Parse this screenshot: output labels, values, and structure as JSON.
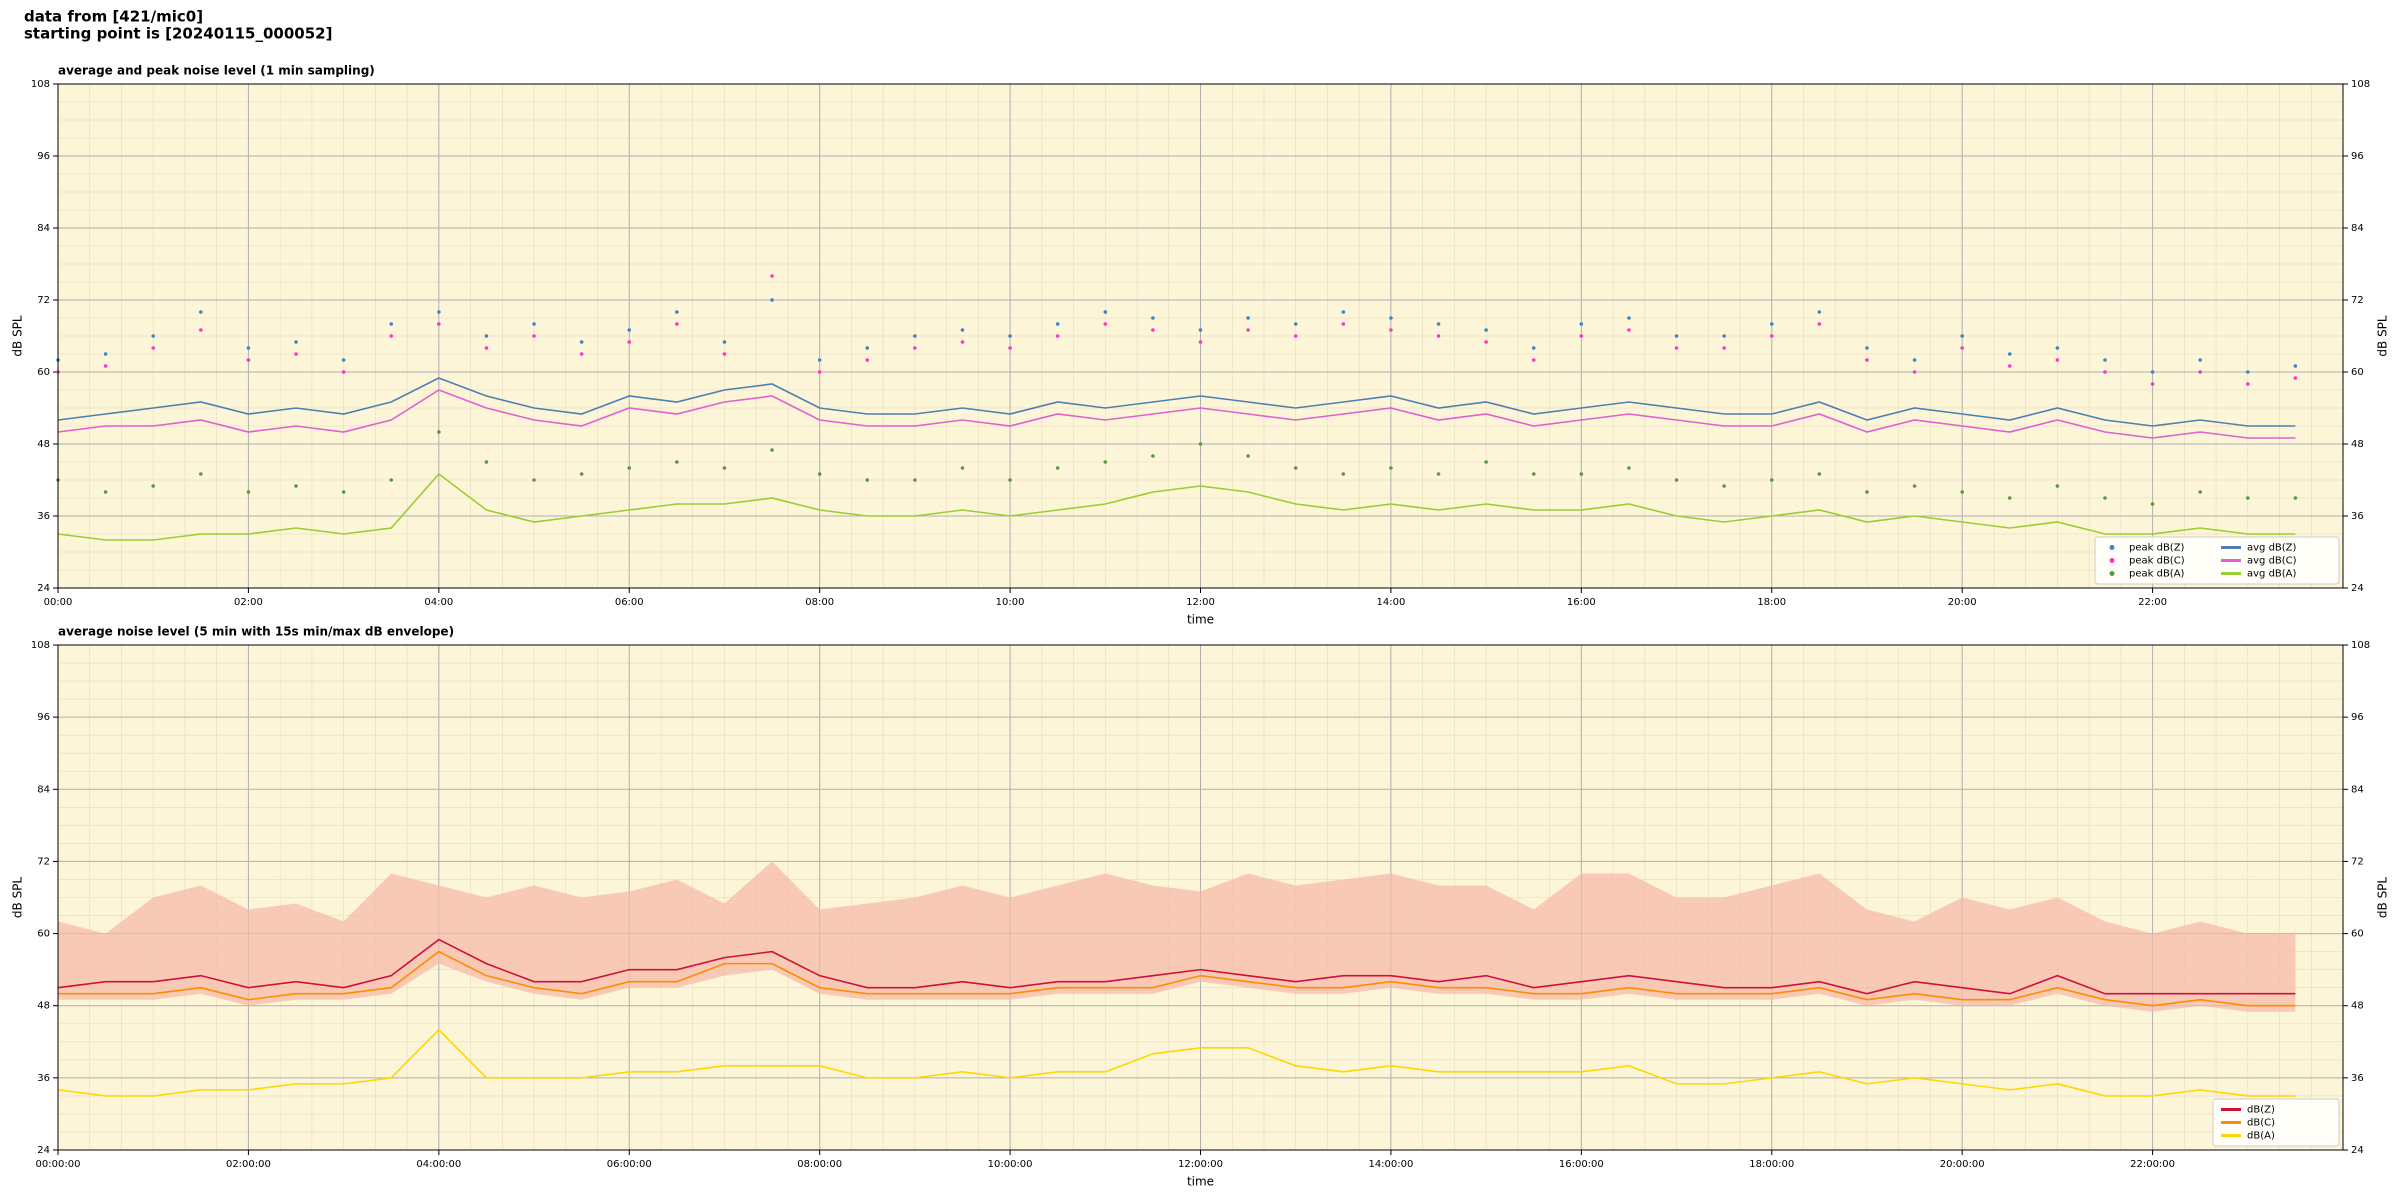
{
  "header": {
    "lines": [
      "data from [421/mic0]",
      "starting point is [20240115_000052]"
    ]
  },
  "chart_data": [
    {
      "type": "line",
      "title": "average and peak noise level (1 min sampling)",
      "xlabel": "time",
      "ylabel": "dB SPL",
      "x": [
        0,
        30,
        60,
        90,
        120,
        150,
        180,
        210,
        240,
        270,
        300,
        330,
        360,
        390,
        420,
        450,
        480,
        510,
        540,
        570,
        600,
        630,
        660,
        690,
        720,
        750,
        780,
        810,
        840,
        870,
        900,
        930,
        960,
        990,
        1020,
        1050,
        1080,
        1110,
        1140,
        1170,
        1200,
        1230,
        1260,
        1290,
        1320,
        1350,
        1380,
        1410
      ],
      "xlim": [
        0,
        1440
      ],
      "xticks": [
        {
          "value": 0,
          "label": "00:00"
        },
        {
          "value": 120,
          "label": "02:00"
        },
        {
          "value": 240,
          "label": "04:00"
        },
        {
          "value": 360,
          "label": "06:00"
        },
        {
          "value": 480,
          "label": "08:00"
        },
        {
          "value": 600,
          "label": "10:00"
        },
        {
          "value": 720,
          "label": "12:00"
        },
        {
          "value": 840,
          "label": "14:00"
        },
        {
          "value": 960,
          "label": "16:00"
        },
        {
          "value": 1080,
          "label": "18:00"
        },
        {
          "value": 1200,
          "label": "20:00"
        },
        {
          "value": 1320,
          "label": "22:00"
        }
      ],
      "ylim": [
        24,
        108
      ],
      "yticks": [
        24,
        36,
        48,
        60,
        72,
        84,
        96,
        108
      ],
      "grid": true,
      "background": "#fdf5d8",
      "legend": "lower right",
      "legend_columns": 2,
      "series": [
        {
          "name": "peak dB(Z)",
          "style": "scatter",
          "color": "#3a86c8",
          "values": [
            62,
            63,
            66,
            70,
            64,
            65,
            62,
            68,
            70,
            66,
            68,
            65,
            67,
            70,
            65,
            72,
            62,
            64,
            66,
            67,
            66,
            68,
            70,
            69,
            67,
            69,
            68,
            70,
            69,
            68,
            67,
            64,
            68,
            69,
            66,
            66,
            68,
            70,
            64,
            62,
            66,
            63,
            64,
            62,
            60,
            62,
            60,
            61
          ]
        },
        {
          "name": "peak dB(C)",
          "style": "scatter",
          "color": "#ff33cc",
          "values": [
            60,
            61,
            64,
            67,
            62,
            63,
            60,
            66,
            68,
            64,
            66,
            63,
            65,
            68,
            63,
            76,
            60,
            62,
            64,
            65,
            64,
            66,
            68,
            67,
            65,
            67,
            66,
            68,
            67,
            66,
            65,
            62,
            66,
            67,
            64,
            64,
            66,
            68,
            62,
            60,
            64,
            61,
            62,
            60,
            58,
            60,
            58,
            59
          ]
        },
        {
          "name": "peak dB(A)",
          "style": "scatter",
          "color": "#5a9a3a",
          "values": [
            42,
            40,
            41,
            43,
            40,
            41,
            40,
            42,
            50,
            45,
            42,
            43,
            44,
            45,
            44,
            47,
            43,
            42,
            42,
            44,
            42,
            44,
            45,
            46,
            48,
            46,
            44,
            43,
            44,
            43,
            45,
            43,
            43,
            44,
            42,
            41,
            42,
            43,
            40,
            41,
            40,
            39,
            41,
            39,
            38,
            40,
            39,
            39
          ]
        },
        {
          "name": "avg dB(Z)",
          "style": "line",
          "color": "#4f7fb0",
          "values": [
            52,
            53,
            54,
            55,
            53,
            54,
            53,
            55,
            59,
            56,
            54,
            53,
            56,
            55,
            57,
            58,
            54,
            53,
            53,
            54,
            53,
            55,
            54,
            55,
            56,
            55,
            54,
            55,
            56,
            54,
            55,
            53,
            54,
            55,
            54,
            53,
            53,
            55,
            52,
            54,
            53,
            52,
            54,
            52,
            51,
            52,
            51,
            51
          ]
        },
        {
          "name": "avg dB(C)",
          "style": "line",
          "color": "#e060d0",
          "values": [
            50,
            51,
            51,
            52,
            50,
            51,
            50,
            52,
            57,
            54,
            52,
            51,
            54,
            53,
            55,
            56,
            52,
            51,
            51,
            52,
            51,
            53,
            52,
            53,
            54,
            53,
            52,
            53,
            54,
            52,
            53,
            51,
            52,
            53,
            52,
            51,
            51,
            53,
            50,
            52,
            51,
            50,
            52,
            50,
            49,
            50,
            49,
            49
          ]
        },
        {
          "name": "avg dB(A)",
          "style": "line",
          "color": "#9acd32",
          "values": [
            33,
            32,
            32,
            33,
            33,
            34,
            33,
            34,
            43,
            37,
            35,
            36,
            37,
            38,
            38,
            39,
            37,
            36,
            36,
            37,
            36,
            37,
            38,
            40,
            41,
            40,
            38,
            37,
            38,
            37,
            38,
            37,
            37,
            38,
            36,
            35,
            36,
            37,
            35,
            36,
            35,
            34,
            35,
            33,
            33,
            34,
            33,
            33
          ]
        }
      ]
    },
    {
      "type": "line",
      "title": "average noise level (5 min with 15s min/max dB envelope)",
      "xlabel": "time",
      "ylabel": "dB SPL",
      "x": [
        0,
        30,
        60,
        90,
        120,
        150,
        180,
        210,
        240,
        270,
        300,
        330,
        360,
        390,
        420,
        450,
        480,
        510,
        540,
        570,
        600,
        630,
        660,
        690,
        720,
        750,
        780,
        810,
        840,
        870,
        900,
        930,
        960,
        990,
        1020,
        1050,
        1080,
        1110,
        1140,
        1170,
        1200,
        1230,
        1260,
        1290,
        1320,
        1350,
        1380,
        1410
      ],
      "xlim": [
        0,
        1440
      ],
      "xticks": [
        {
          "value": 0,
          "label": "00:00:00"
        },
        {
          "value": 120,
          "label": "02:00:00"
        },
        {
          "value": 240,
          "label": "04:00:00"
        },
        {
          "value": 360,
          "label": "06:00:00"
        },
        {
          "value": 480,
          "label": "08:00:00"
        },
        {
          "value": 600,
          "label": "10:00:00"
        },
        {
          "value": 720,
          "label": "12:00:00"
        },
        {
          "value": 840,
          "label": "14:00:00"
        },
        {
          "value": 960,
          "label": "16:00:00"
        },
        {
          "value": 1080,
          "label": "18:00:00"
        },
        {
          "value": 1200,
          "label": "20:00:00"
        },
        {
          "value": 1320,
          "label": "22:00:00"
        }
      ],
      "ylim": [
        24,
        108
      ],
      "yticks": [
        24,
        36,
        48,
        60,
        72,
        84,
        96,
        108
      ],
      "grid": true,
      "background": "#fdf5d8",
      "legend": "lower right",
      "legend_columns": 1,
      "envelope": {
        "color": "#f5b8a8",
        "low": [
          49,
          49,
          49,
          50,
          48,
          49,
          49,
          50,
          55,
          52,
          50,
          49,
          51,
          51,
          53,
          54,
          50,
          49,
          49,
          49,
          49,
          50,
          50,
          50,
          52,
          51,
          50,
          50,
          51,
          50,
          50,
          49,
          49,
          50,
          49,
          49,
          49,
          50,
          48,
          49,
          48,
          48,
          50,
          48,
          47,
          48,
          47,
          47
        ],
        "high": [
          62,
          60,
          66,
          68,
          64,
          65,
          62,
          70,
          68,
          66,
          68,
          66,
          67,
          69,
          65,
          72,
          64,
          65,
          66,
          68,
          66,
          68,
          70,
          68,
          67,
          70,
          68,
          69,
          70,
          68,
          68,
          64,
          70,
          70,
          66,
          66,
          68,
          70,
          64,
          62,
          66,
          64,
          66,
          62,
          60,
          62,
          60,
          60
        ]
      },
      "series": [
        {
          "name": "dB(Z)",
          "style": "line",
          "color": "#d0103a",
          "values": [
            51,
            52,
            52,
            53,
            51,
            52,
            51,
            53,
            59,
            55,
            52,
            52,
            54,
            54,
            56,
            57,
            53,
            51,
            51,
            52,
            51,
            52,
            52,
            53,
            54,
            53,
            52,
            53,
            53,
            52,
            53,
            51,
            52,
            53,
            52,
            51,
            51,
            52,
            50,
            52,
            51,
            50,
            53,
            50,
            50,
            50,
            50,
            50
          ]
        },
        {
          "name": "dB(C)",
          "style": "line",
          "color": "#ff8c00",
          "values": [
            50,
            50,
            50,
            51,
            49,
            50,
            50,
            51,
            57,
            53,
            51,
            50,
            52,
            52,
            55,
            55,
            51,
            50,
            50,
            50,
            50,
            51,
            51,
            51,
            53,
            52,
            51,
            51,
            52,
            51,
            51,
            50,
            50,
            51,
            50,
            50,
            50,
            51,
            49,
            50,
            49,
            49,
            51,
            49,
            48,
            49,
            48,
            48
          ]
        },
        {
          "name": "dB(A)",
          "style": "line",
          "color": "#ffd700",
          "values": [
            34,
            33,
            33,
            34,
            34,
            35,
            35,
            36,
            44,
            36,
            36,
            36,
            37,
            37,
            38,
            38,
            38,
            36,
            36,
            37,
            36,
            37,
            37,
            40,
            41,
            41,
            38,
            37,
            38,
            37,
            37,
            37,
            37,
            38,
            35,
            35,
            36,
            37,
            35,
            36,
            35,
            34,
            35,
            33,
            33,
            34,
            33,
            33
          ]
        }
      ]
    }
  ]
}
